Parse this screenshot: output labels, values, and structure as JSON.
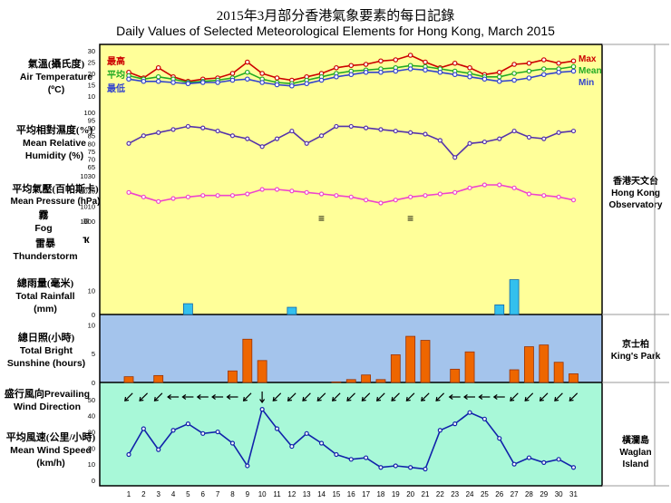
{
  "title_zh": "2015年3月部分香港氣象要素的每日記錄",
  "title_en": "Daily Values of Selected Meteorological Elements for Hong Kong, March 2015",
  "panels": {
    "temp": {
      "zh": "氣溫(攝氏度)",
      "en": "Air Temperature",
      "unit": "(ºC)",
      "leg_max_zh": "最高",
      "leg_mean_zh": "平均",
      "leg_min_zh": "最低",
      "leg_max": "Max",
      "leg_mean": "Mean",
      "leg_min": "Min"
    },
    "hum": {
      "zh": "平均相對濕度(%)",
      "en": "Mean Relative",
      "unit": "Humidity  (%)"
    },
    "pres": {
      "zh": "平均氣壓(百帕斯卡)",
      "en": "Mean Pressure (hPa)"
    },
    "fog": {
      "zh": "霧",
      "en": "Fog",
      "symbol": "≡"
    },
    "thunder": {
      "zh": "雷暴",
      "en": "Thunderstorm",
      "symbol": "ҡ"
    },
    "rain": {
      "zh": "總雨量(毫米)",
      "en": "Total Rainfall",
      "unit": "(mm)"
    },
    "sun": {
      "zh": "總日照(小時)",
      "en": "Total Bright",
      "unit": "Sunshine  (hours)"
    },
    "wdir": {
      "zh": "盛行風向",
      "en_inline": "Prevailing",
      "en": "Wind Direction"
    },
    "wspd": {
      "zh": "平均風速(公里/小時)",
      "en": "Mean Wind Speed",
      "unit": "(km/h)"
    }
  },
  "stations": {
    "hko": {
      "zh": "香港天文台",
      "en1": "Hong Kong",
      "en2": "Observatory"
    },
    "kp": {
      "zh": "京士柏",
      "en": "King's Park"
    },
    "wi": {
      "zh": "橫瀾島",
      "en": "Waglan Island"
    }
  },
  "colors": {
    "max": "#cc0000",
    "mean": "#22aa22",
    "min": "#3344cc",
    "yellow": "#ffff99",
    "blue": "#a4c4ec",
    "green": "#a8f8d8",
    "humidity": "#5533aa",
    "pressure": "#ee44cc",
    "rain": "#33c0ee",
    "sun": "#ee6600",
    "wind": "#1122aa"
  },
  "chart_data": {
    "type": "line",
    "x": [
      1,
      2,
      3,
      4,
      5,
      6,
      7,
      8,
      9,
      10,
      11,
      12,
      13,
      14,
      15,
      16,
      17,
      18,
      19,
      20,
      21,
      22,
      23,
      24,
      25,
      26,
      27,
      28,
      29,
      30,
      31
    ],
    "x_tick_labels": [
      "1",
      "2",
      "3",
      "4",
      "5",
      "6",
      "7",
      "8",
      "9",
      "10",
      "11",
      "12",
      "13",
      "14",
      "15",
      "16",
      "17",
      "18",
      "19",
      "20",
      "21",
      "22",
      "23",
      "24",
      "25",
      "26",
      "27",
      "28",
      "29",
      "30",
      "31"
    ],
    "axes": {
      "temp": {
        "ylim": [
          10,
          30
        ],
        "ticks": [
          10,
          15,
          20,
          25,
          30
        ]
      },
      "humidity": {
        "ylim": [
          65,
          100
        ],
        "ticks": [
          65,
          70,
          75,
          80,
          85,
          90,
          95,
          100
        ]
      },
      "pressure": {
        "ylim": [
          1000,
          1030
        ],
        "ticks": [
          1000,
          1010,
          1020,
          1030
        ]
      },
      "rain": {
        "ylim": [
          0,
          20
        ],
        "ticks": [
          0,
          10
        ]
      },
      "sun": {
        "ylim": [
          0,
          11
        ],
        "ticks": [
          0,
          5,
          10
        ]
      },
      "wind": {
        "ylim": [
          0,
          55
        ],
        "ticks": [
          0,
          10,
          20,
          30,
          40,
          50
        ]
      }
    },
    "series": [
      {
        "name": "Max",
        "values": [
          20.5,
          18,
          22.5,
          18.5,
          16.5,
          17.5,
          18,
          20,
          25,
          20,
          18,
          17,
          18.5,
          20,
          22.5,
          23.5,
          24,
          25.5,
          26,
          28,
          25,
          22.5,
          24.5,
          22.5,
          19.5,
          20.5,
          24,
          24.5,
          26,
          24.5,
          25.5
        ]
      },
      {
        "name": "Mean",
        "values": [
          19,
          17.5,
          18.5,
          17.5,
          16,
          16.5,
          17,
          18,
          20.5,
          17.5,
          16,
          15.5,
          17,
          18.5,
          20,
          21,
          21.5,
          22,
          22.5,
          23.5,
          23,
          22,
          21,
          20,
          18.5,
          18.5,
          20,
          21,
          22,
          22,
          23
        ]
      },
      {
        "name": "Min",
        "values": [
          17.5,
          16.5,
          16.5,
          16,
          15.5,
          16,
          16,
          17,
          17.5,
          16,
          15,
          14.5,
          15.5,
          17,
          18.5,
          19.5,
          20.5,
          20.5,
          21,
          22,
          21.5,
          20.5,
          19.5,
          18.5,
          17.5,
          16.5,
          17,
          18,
          19.5,
          20.5,
          21
        ]
      },
      {
        "name": "Mean Relative Humidity",
        "values": [
          80,
          85,
          87,
          89,
          91,
          90,
          88,
          85,
          83,
          78,
          83,
          88,
          80,
          85,
          91,
          91,
          90,
          89,
          88,
          87,
          86,
          82,
          71,
          80,
          81,
          83,
          88,
          84,
          83,
          87,
          88
        ]
      },
      {
        "name": "Mean Pressure",
        "values": [
          1019,
          1016,
          1013,
          1015,
          1016,
          1017,
          1017,
          1017,
          1018,
          1021,
          1021,
          1020,
          1019,
          1018,
          1017,
          1016,
          1014,
          1012,
          1014,
          1016,
          1017,
          1018,
          1019,
          1022,
          1024,
          1024,
          1022,
          1018,
          1017,
          1016,
          1014
        ]
      },
      {
        "name": "Total Rainfall",
        "values": [
          0,
          0,
          0,
          0,
          4.5,
          0,
          0,
          0,
          0,
          0,
          0,
          3,
          0,
          0,
          0,
          0,
          0,
          0,
          0,
          0,
          0,
          0,
          0,
          0,
          0,
          4,
          14.5,
          0,
          0,
          0,
          0
        ]
      },
      {
        "name": "Total Bright Sunshine",
        "values": [
          1,
          0,
          1.2,
          0,
          0,
          0,
          0,
          2,
          7.5,
          3.8,
          0,
          0,
          0,
          0,
          0.1,
          0.5,
          1.3,
          0.5,
          4.8,
          8,
          7.3,
          0,
          2.3,
          5.3,
          0,
          0,
          2.2,
          6.2,
          6.5,
          3.5,
          1.5
        ]
      },
      {
        "name": "Mean Wind Speed",
        "values": [
          16,
          32,
          19,
          31,
          35,
          29,
          30,
          23,
          9,
          44,
          32,
          21,
          29,
          23,
          16,
          13,
          14,
          8,
          9,
          8,
          7,
          31,
          35,
          42,
          38,
          26,
          10,
          14,
          11,
          13,
          8
        ]
      }
    ],
    "fog_days": [
      14,
      20
    ],
    "prevailing_wind_direction": [
      "NE",
      "NE",
      "NE",
      "E",
      "E",
      "E",
      "E",
      "E",
      "NE",
      "N",
      "NE",
      "NE",
      "NE",
      "NE",
      "NE",
      "NE",
      "NE",
      "NE",
      "NE",
      "NE",
      "NE",
      "NE",
      "E",
      "E",
      "E",
      "E",
      "NE",
      "NE",
      "NE",
      "NE",
      "NE"
    ]
  }
}
